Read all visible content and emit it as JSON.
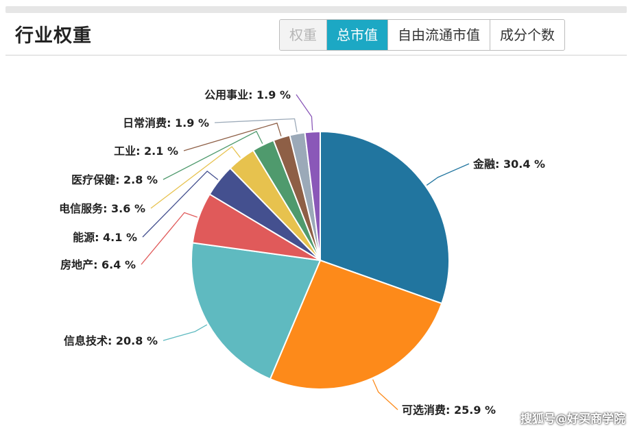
{
  "header": {
    "title": "行业权重",
    "tabs": [
      {
        "label": "权重",
        "state": "disabled"
      },
      {
        "label": "总市值",
        "state": "active"
      },
      {
        "label": "自由流通市值",
        "state": "normal"
      },
      {
        "label": "成分个数",
        "state": "normal"
      }
    ]
  },
  "watermark": "搜狐号@好买商学院",
  "chart_data": {
    "type": "pie",
    "unit": "%",
    "slices": [
      {
        "label": "金融",
        "value": 30.4,
        "display": "金融: 30.4 %",
        "color": "#21759f"
      },
      {
        "label": "可选消费",
        "value": 25.9,
        "display": "可选消费: 25.9 %",
        "color": "#fd8a1a"
      },
      {
        "label": "信息技术",
        "value": 20.8,
        "display": "信息技术: 20.8 %",
        "color": "#5fbac0"
      },
      {
        "label": "房地产",
        "value": 6.4,
        "display": "房地产: 6.4 %",
        "color": "#e05a5a"
      },
      {
        "label": "能源",
        "value": 4.1,
        "display": "能源: 4.1 %",
        "color": "#44508f"
      },
      {
        "label": "电信服务",
        "value": 3.6,
        "display": "电信服务: 3.6 %",
        "color": "#e7c24e"
      },
      {
        "label": "医疗保健",
        "value": 2.8,
        "display": "医疗保健: 2.8 %",
        "color": "#4f9a6d"
      },
      {
        "label": "工业",
        "value": 2.1,
        "display": "工业: 2.1 %",
        "color": "#8e5f46"
      },
      {
        "label": "日常消费",
        "value": 1.9,
        "display": "日常消费: 1.9 %",
        "color": "#9ba9b8"
      },
      {
        "label": "公用事业",
        "value": 1.9,
        "display": "公用事业: 1.9 %",
        "color": "#8a58b8"
      }
    ]
  }
}
